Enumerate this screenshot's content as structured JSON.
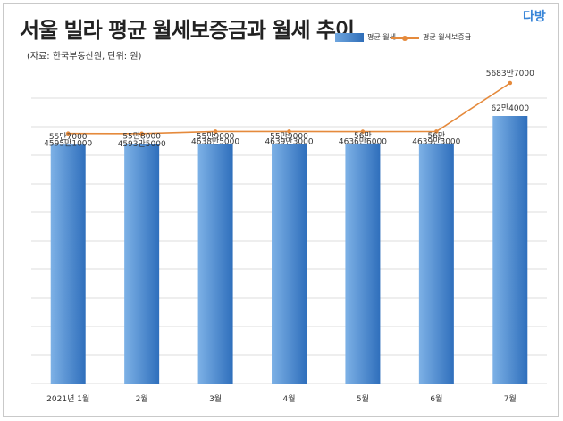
{
  "header": {
    "title": "서울 빌라 평균 월세보증금과 월세 추이",
    "source": "(자료: 한국부동산원, 단위: 원)",
    "logo": "다방"
  },
  "colors": {
    "bar": "#4a8fd8",
    "line": "#e58a3c",
    "grid": "#dcdcdc"
  },
  "chart_data": {
    "type": "bar",
    "title": "서울 빌라 평균 월세보증금과 월세 추이",
    "categories": [
      "2021년 1월",
      "2월",
      "3월",
      "4월",
      "5월",
      "6월",
      "7월"
    ],
    "series": [
      {
        "name": "평균 월세",
        "type": "bar",
        "values": [
          557000,
          558000,
          559000,
          559000,
          560000,
          560000,
          624000
        ],
        "labels": [
          "55만7000",
          "55만8000",
          "55만9000",
          "55만9000",
          "56만",
          "56만",
          "62만4000"
        ]
      },
      {
        "name": "평균 월세보증금",
        "type": "line",
        "values": [
          45951000,
          45935000,
          46385000,
          46393000,
          46366000,
          46393000,
          56837000
        ],
        "labels": [
          "4595만1000",
          "4593만5000",
          "4638만5000",
          "4639만3000",
          "4636만6000",
          "4639만3000",
          "5683만7000"
        ]
      }
    ],
    "legend": "top-right",
    "grid": true
  }
}
